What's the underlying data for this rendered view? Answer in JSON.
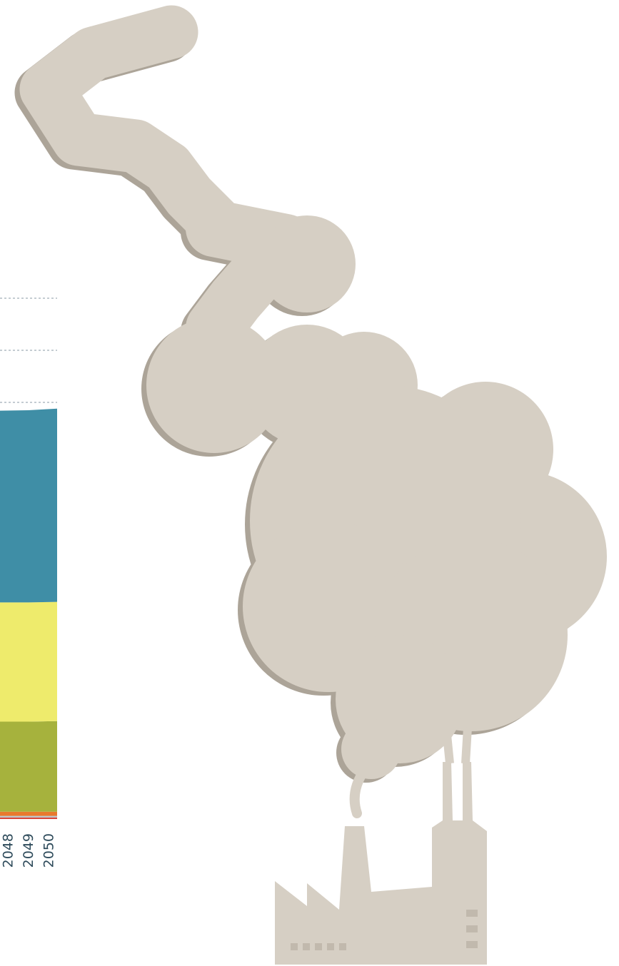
{
  "chart_data": {
    "type": "stacked_area",
    "x": [
      2048,
      2049,
      2050
    ],
    "series": [
      {
        "color": "#d9463a",
        "values": [
          0.3,
          0.3,
          0.3
        ]
      },
      {
        "color": "#b9c7cf",
        "values": [
          0.3,
          0.3,
          0.3
        ]
      },
      {
        "color": "#e8792d",
        "values": [
          0.8,
          0.8,
          0.8
        ]
      },
      {
        "color": "#a6b23d",
        "values": [
          17.3,
          17.3,
          17.4
        ]
      },
      {
        "color": "#eeeb6c",
        "values": [
          22.9,
          22.9,
          22.9
        ]
      },
      {
        "color": "#3f8ea6",
        "values": [
          36.8,
          36.9,
          37.1
        ]
      }
    ],
    "ylim": [
      0,
      100
    ],
    "yticks": [
      80,
      90,
      100
    ],
    "grid": true
  }
}
